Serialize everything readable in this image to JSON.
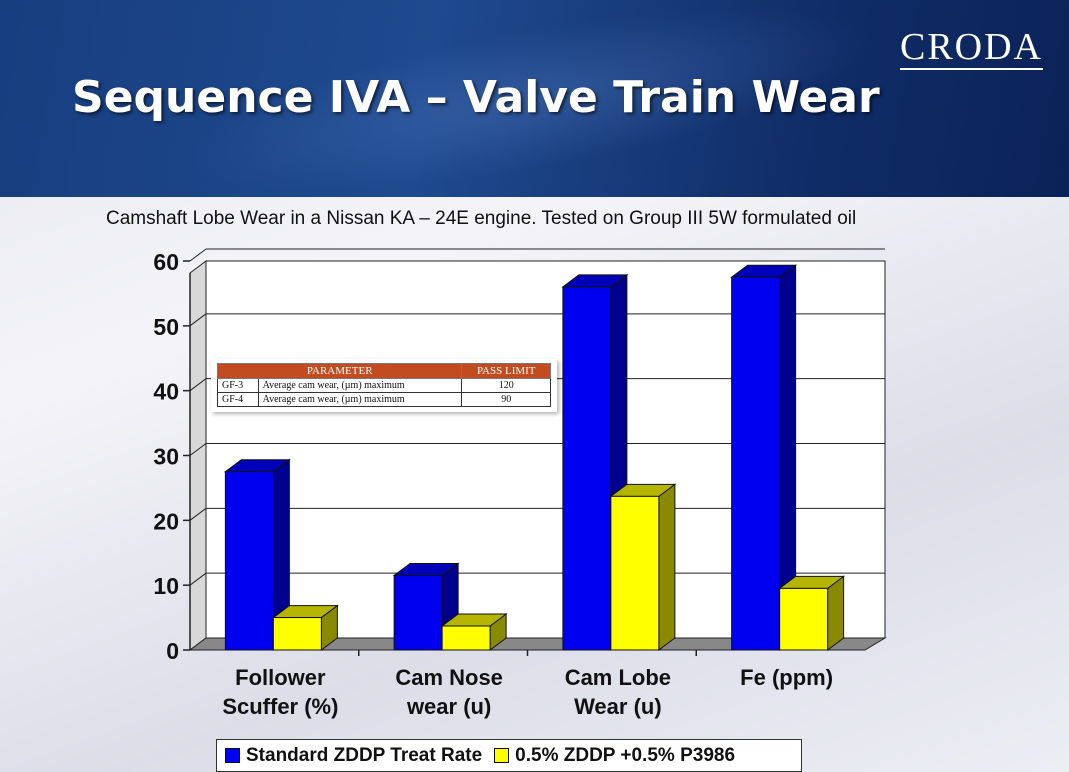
{
  "header": {
    "logo": "CRODA",
    "title": "Sequence IVA – Valve Train Wear"
  },
  "colors": {
    "series1": "#0000f0",
    "series2": "#ffff00",
    "header_bg": "#1b3f80",
    "table_header": "#c24b1f"
  },
  "chart_data": {
    "type": "bar",
    "title": "Camshaft Lobe Wear in a Nissan KA – 24E engine. Tested on Group III 5W formulated oil",
    "categories": [
      [
        "Follower",
        "Scuffer (%)"
      ],
      [
        "Cam Nose",
        "wear (u)"
      ],
      [
        "Cam Lobe",
        "Wear (u)"
      ],
      [
        "Fe (ppm)"
      ]
    ],
    "series": [
      {
        "name": "Standard ZDDP Treat Rate",
        "values": [
          27.5,
          11.5,
          56,
          57.5
        ]
      },
      {
        "name": "0.5% ZDDP +0.5% P3986",
        "values": [
          5,
          3.7,
          23.7,
          9.5
        ]
      }
    ],
    "yticks": [
      "0",
      "10",
      "20",
      "30",
      "40",
      "50",
      "60"
    ],
    "ylim": [
      0,
      60
    ],
    "grid": true,
    "legend_position": "bottom"
  },
  "param_table": {
    "headers": [
      "PARAMETER",
      "PASS LIMIT"
    ],
    "rows": [
      {
        "grade": "GF-3",
        "param": "Average cam wear, (µm) maximum",
        "limit": "120"
      },
      {
        "grade": "GF-4",
        "param": "Average cam wear, (µm) maximum",
        "limit": "90"
      }
    ]
  }
}
